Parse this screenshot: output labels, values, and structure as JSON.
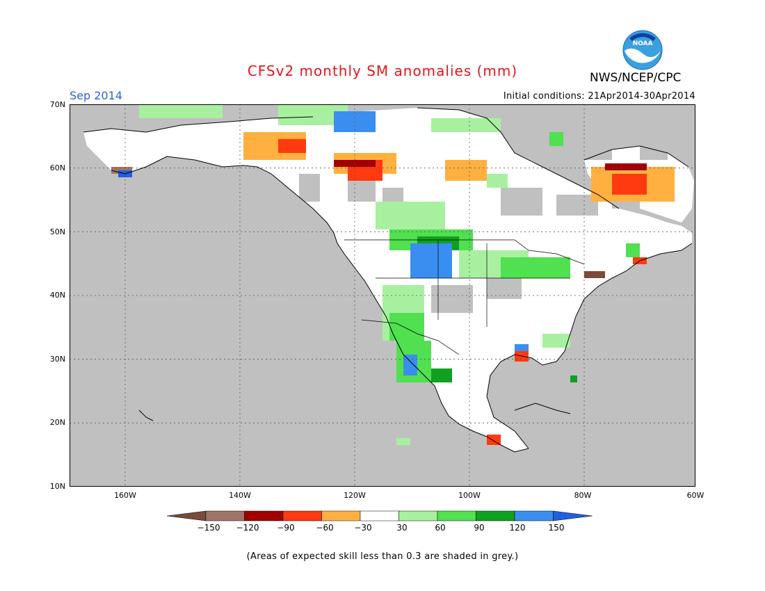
{
  "title": "CFSv2 monthly SM anomalies (mm)",
  "month": "Sep 2014",
  "initial_conditions": "Initial conditions: 21Apr2014-30Apr2014",
  "agency": "NWS/NCEP/CPC",
  "logo_text": "NOAA",
  "footnote": "(Areas of expected skill less than 0.3 are shaded in grey.)",
  "latitude_labels": [
    "70N",
    "60N",
    "50N",
    "40N",
    "30N",
    "20N",
    "10N"
  ],
  "longitude_labels": [
    "160W",
    "140W",
    "120W",
    "100W",
    "80W",
    "60W"
  ],
  "colorbar": {
    "labels": [
      "−150",
      "−120",
      "−90",
      "−60",
      "−30",
      "30",
      "60",
      "90",
      "120",
      "150"
    ],
    "colors": [
      "#7a4a3a",
      "#a07568",
      "#a00000",
      "#ff3a10",
      "#ffb040",
      "#ffffff",
      "#a8f0a0",
      "#50e050",
      "#10a020",
      "#3a8ef0",
      "#2060e0"
    ]
  },
  "colors": {
    "grey_no_skill": "#c0c0c0",
    "title_red": "#e8141b",
    "month_blue": "#2f5fd8"
  }
}
